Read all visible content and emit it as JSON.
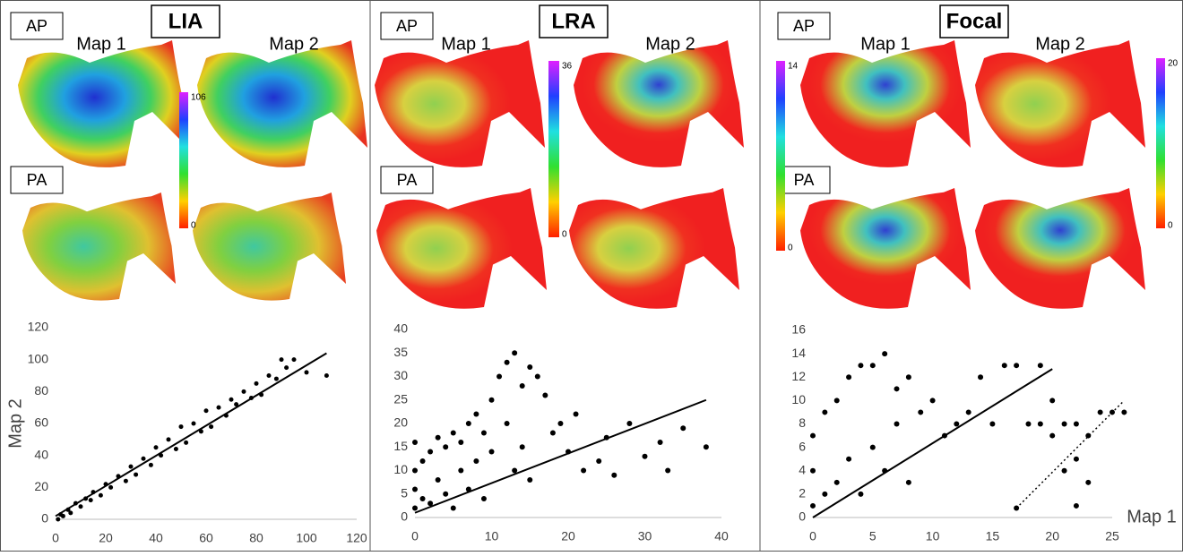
{
  "panels": [
    {
      "title": "LIA",
      "views": [
        "AP",
        "PA"
      ],
      "maps": [
        "Map 1",
        "Map 2"
      ],
      "colorbars": [
        {
          "max": 106,
          "min": 0
        }
      ]
    },
    {
      "title": "LRA",
      "views": [
        "AP",
        "PA"
      ],
      "maps": [
        "Map 1",
        "Map 2"
      ],
      "colorbars": [
        {
          "max": 36,
          "min": 0
        }
      ]
    },
    {
      "title": "Focal",
      "views": [
        "AP",
        "PA"
      ],
      "maps": [
        "Map 1",
        "Map 2"
      ],
      "colorbars": [
        {
          "max": 14,
          "min": 0
        },
        {
          "max": 20,
          "min": 0
        }
      ]
    }
  ],
  "chart_data": [
    {
      "type": "scatter",
      "ylabel": "Map 2",
      "color": "#000000",
      "x": [
        1,
        2,
        3,
        5,
        6,
        8,
        10,
        12,
        14,
        15,
        18,
        20,
        22,
        25,
        28,
        30,
        32,
        35,
        38,
        40,
        42,
        45,
        48,
        50,
        52,
        55,
        58,
        60,
        62,
        65,
        68,
        70,
        72,
        75,
        78,
        80,
        82,
        85,
        88,
        90,
        92,
        95,
        100,
        108
      ],
      "y": [
        0,
        3,
        2,
        6,
        4,
        10,
        8,
        13,
        12,
        17,
        15,
        22,
        20,
        27,
        24,
        33,
        28,
        38,
        34,
        45,
        40,
        50,
        44,
        58,
        48,
        60,
        55,
        68,
        58,
        70,
        65,
        75,
        72,
        80,
        76,
        85,
        78,
        90,
        88,
        100,
        95,
        100,
        92,
        90
      ],
      "lines": [
        {
          "x": [
            0,
            108
          ],
          "y": [
            2,
            104
          ],
          "style": "solid"
        }
      ],
      "xlim": [
        0,
        120
      ],
      "ylim": [
        0,
        120
      ],
      "xticks": [
        0,
        20,
        40,
        60,
        80,
        100,
        120
      ],
      "yticks": [
        0,
        20,
        40,
        60,
        80,
        100,
        120
      ]
    },
    {
      "type": "scatter",
      "color": "#000000",
      "x": [
        0,
        0,
        0,
        0,
        1,
        1,
        2,
        2,
        3,
        3,
        4,
        4,
        5,
        5,
        6,
        6,
        7,
        7,
        8,
        8,
        9,
        9,
        10,
        10,
        11,
        12,
        12,
        13,
        13,
        14,
        14,
        15,
        15,
        16,
        17,
        18,
        19,
        20,
        21,
        22,
        24,
        25,
        26,
        28,
        30,
        32,
        33,
        35,
        38
      ],
      "y": [
        2,
        6,
        10,
        16,
        4,
        12,
        3,
        14,
        8,
        17,
        5,
        15,
        2,
        18,
        10,
        16,
        6,
        20,
        12,
        22,
        4,
        18,
        14,
        25,
        30,
        20,
        33,
        10,
        35,
        28,
        15,
        32,
        8,
        30,
        26,
        18,
        20,
        14,
        22,
        10,
        12,
        17,
        9,
        20,
        13,
        16,
        10,
        19,
        15
      ],
      "lines": [
        {
          "x": [
            0,
            38
          ],
          "y": [
            1,
            25
          ],
          "style": "solid"
        }
      ],
      "xlim": [
        0,
        40
      ],
      "ylim": [
        0,
        40
      ],
      "xticks": [
        0,
        10,
        20,
        30,
        40
      ],
      "yticks": [
        0,
        5,
        10,
        15,
        20,
        25,
        30,
        35,
        40
      ]
    },
    {
      "type": "scatter",
      "xlabel": "Map 1",
      "color": "#000000",
      "x": [
        0,
        0,
        0,
        1,
        1,
        2,
        2,
        3,
        3,
        4,
        4,
        5,
        5,
        6,
        6,
        7,
        7,
        8,
        8,
        9,
        10,
        11,
        12,
        13,
        14,
        15,
        16,
        17,
        18,
        19,
        19,
        20,
        20,
        21,
        21,
        22,
        22,
        22,
        23,
        23,
        24,
        25,
        26,
        17
      ],
      "y": [
        1,
        4,
        7,
        2,
        9,
        3,
        10,
        5,
        12,
        2,
        13,
        6,
        13,
        4,
        14,
        8,
        11,
        3,
        12,
        9,
        10,
        7,
        8,
        9,
        12,
        8,
        13,
        13,
        8,
        8,
        13,
        10,
        7,
        4,
        8,
        1,
        5,
        8,
        3,
        7,
        9,
        9,
        9,
        0.8
      ],
      "lines": [
        {
          "x": [
            0,
            20
          ],
          "y": [
            0,
            12.7
          ],
          "style": "solid"
        },
        {
          "x": [
            17,
            26
          ],
          "y": [
            0.8,
            10
          ],
          "style": "dotted"
        }
      ],
      "xlim": [
        0,
        25
      ],
      "ylim": [
        0,
        16
      ],
      "xticks": [
        0,
        5,
        10,
        15,
        20,
        25
      ],
      "yticks": [
        0,
        2,
        4,
        6,
        8,
        10,
        12,
        14,
        16
      ]
    }
  ]
}
